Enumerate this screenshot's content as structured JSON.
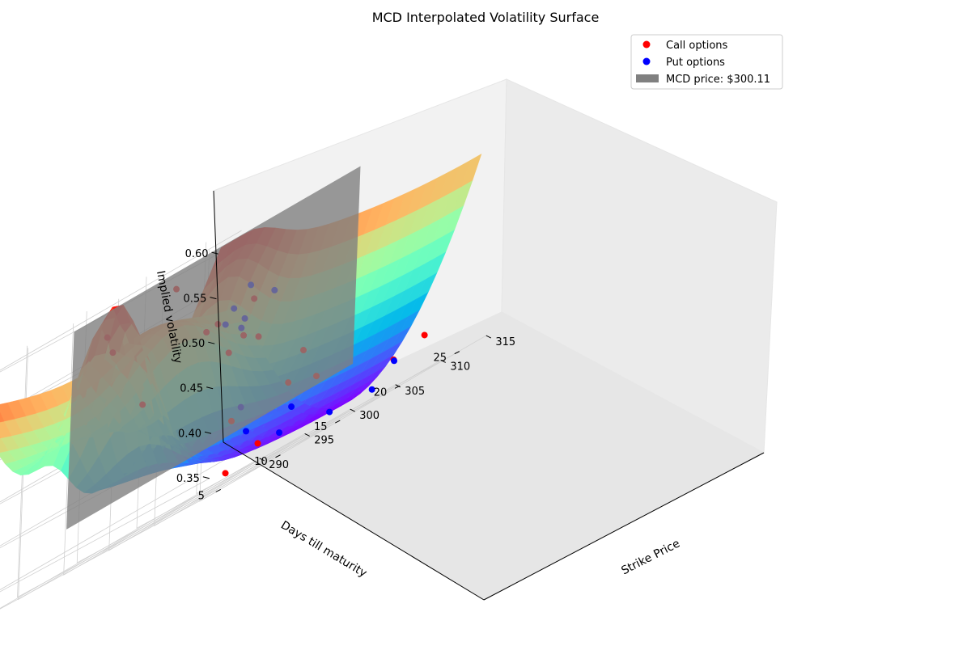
{
  "chart_data": {
    "type": "surface3d",
    "title": "MCD Interpolated Volatility Surface",
    "xlabel": "Strike Price",
    "ylabel": "Days till maturity",
    "zlabel": "Implied volatility",
    "x_ticks": [
      "290",
      "295",
      "300",
      "305",
      "310",
      "315"
    ],
    "y_ticks": [
      "5",
      "10",
      "15",
      "20",
      "25"
    ],
    "z_ticks": [
      "0.35",
      "0.40",
      "0.45",
      "0.50",
      "0.55",
      "0.60"
    ],
    "xlim": [
      287,
      316
    ],
    "ylim": [
      4,
      28
    ],
    "zlim": [
      0.33,
      0.61
    ],
    "grid": true,
    "legend_position": "top-right",
    "colormap": "rainbow",
    "legend": [
      {
        "label": "Call options",
        "color": "#ff0000",
        "marker": "circle"
      },
      {
        "label": "Put options",
        "color": "#0000ff",
        "marker": "circle"
      },
      {
        "label": "MCD price: $300.11",
        "color": "#808080",
        "marker": "rect"
      }
    ],
    "price_plane": {
      "strike": 300.11,
      "color": "#808080",
      "opacity": 0.8
    },
    "call_points": [
      [
        315,
        6,
        0.48
      ],
      [
        315,
        8,
        0.525
      ],
      [
        310,
        15,
        0.405
      ],
      [
        305,
        20,
        0.43
      ],
      [
        300,
        25,
        0.39
      ],
      [
        298,
        9,
        0.55
      ],
      [
        297,
        15,
        0.58
      ],
      [
        296,
        10,
        0.57
      ],
      [
        295,
        14,
        0.47
      ],
      [
        294,
        20,
        0.51
      ],
      [
        292,
        26,
        0.47
      ],
      [
        290,
        24,
        0.51
      ],
      [
        288,
        27,
        0.39
      ],
      [
        312,
        25,
        0.37
      ],
      [
        306,
        27,
        0.36
      ],
      [
        302,
        16,
        0.34
      ],
      [
        295,
        24,
        0.35
      ],
      [
        289,
        27,
        0.48
      ]
    ],
    "put_points": [
      [
        315,
        7,
        0.5
      ],
      [
        312,
        12,
        0.52
      ],
      [
        308,
        13,
        0.54
      ],
      [
        304,
        14,
        0.51
      ],
      [
        300,
        22,
        0.35
      ],
      [
        296,
        26,
        0.37
      ],
      [
        293,
        24,
        0.5
      ],
      [
        291,
        26,
        0.37
      ],
      [
        310,
        24,
        0.36
      ],
      [
        305,
        26,
        0.34
      ],
      [
        299,
        27,
        0.34
      ],
      [
        289,
        27,
        0.4
      ],
      [
        297,
        20,
        0.52
      ]
    ]
  }
}
